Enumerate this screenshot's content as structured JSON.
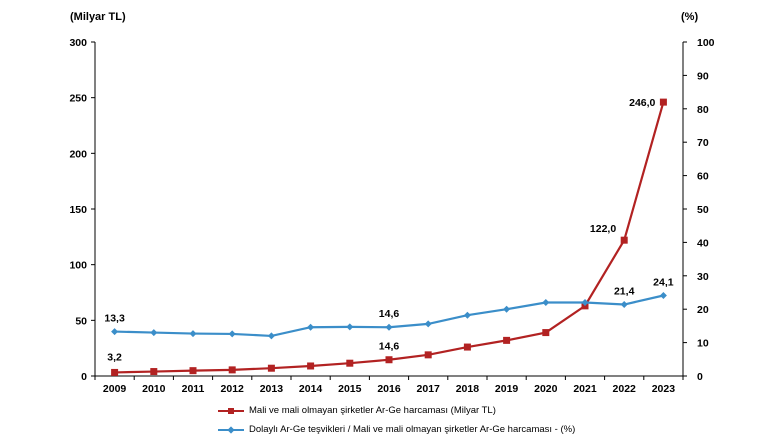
{
  "chart_data": {
    "type": "line",
    "x": [
      "2009",
      "2010",
      "2011",
      "2012",
      "2013",
      "2014",
      "2015",
      "2016",
      "2017",
      "2018",
      "2019",
      "2020",
      "2021",
      "2022",
      "2023"
    ],
    "left_axis": {
      "label": "(Milyar TL)",
      "range": [
        0,
        300
      ],
      "ticks": [
        "0",
        "50",
        "100",
        "150",
        "200",
        "250",
        "300"
      ]
    },
    "right_axis": {
      "label": "(%)",
      "range": [
        0,
        100
      ],
      "ticks": [
        "0",
        "10",
        "20",
        "30",
        "40",
        "50",
        "60",
        "70",
        "80",
        "90",
        "100"
      ]
    },
    "series": [
      {
        "name": "Mali ve mali olmayan şirketler Ar-Ge harcaması (Milyar TL)",
        "axis": "left",
        "color": "#b22222",
        "marker": "square",
        "values": [
          3.2,
          4.0,
          4.8,
          5.5,
          7.0,
          9.0,
          11.5,
          14.6,
          19.0,
          26.0,
          32.0,
          39.0,
          63.0,
          122.0,
          246.0
        ],
        "labels": {
          "0": "3,2",
          "7": "14,6",
          "13": "122,0",
          "14": "246,0"
        }
      },
      {
        "name": "Dolaylı Ar-Ge teşvikleri / Mali ve mali olmayan şirketler Ar-Ge harcaması - (%)",
        "axis": "right",
        "color": "#3b8ec9",
        "marker": "diamond",
        "values": [
          13.3,
          13.0,
          12.7,
          12.6,
          12.0,
          14.6,
          14.7,
          14.6,
          15.6,
          18.2,
          20.0,
          22.0,
          22.0,
          21.4,
          24.1
        ],
        "labels": {
          "0": "13,3",
          "7": "14,6",
          "13": "21,4",
          "14": "24,1"
        }
      }
    ],
    "grid": false,
    "legend_position": "bottom"
  }
}
